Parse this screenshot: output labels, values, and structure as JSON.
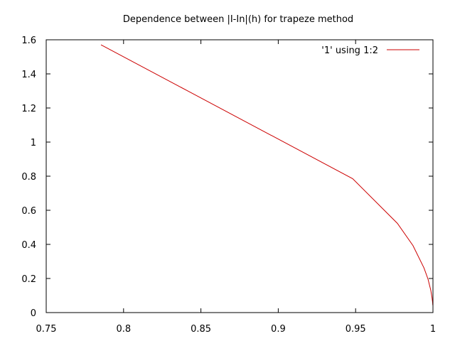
{
  "chart_data": {
    "type": "line",
    "title": "Dependence between |I-In|(h) for trapeze method",
    "xlabel": "",
    "ylabel": "",
    "xlim": [
      0.75,
      1.0
    ],
    "ylim": [
      0,
      1.6
    ],
    "x_ticks": [
      0.75,
      0.8,
      0.85,
      0.9,
      0.95,
      1.0
    ],
    "x_tick_labels": [
      "0.75",
      "0.8",
      "0.85",
      "0.9",
      "0.95",
      "1"
    ],
    "y_ticks": [
      0,
      0.2,
      0.4,
      0.6,
      0.8,
      1.0,
      1.2,
      1.4,
      1.6
    ],
    "y_tick_labels": [
      "0",
      "0.2",
      "0.4",
      "0.6",
      "0.8",
      "1",
      "1.2",
      "1.4",
      "1.6"
    ],
    "grid": false,
    "legend_position": "top-right",
    "series": [
      {
        "name": "'1' using 1:2",
        "color": "#cc0000",
        "x": [
          0.7854,
          0.9481,
          0.977,
          0.9871,
          0.9942,
          0.9968,
          0.9986,
          0.9994,
          0.9998,
          0.9999
        ],
        "y": [
          1.5708,
          0.7854,
          0.5236,
          0.3927,
          0.2618,
          0.1963,
          0.1309,
          0.0873,
          0.0581,
          0.0436
        ]
      }
    ]
  }
}
